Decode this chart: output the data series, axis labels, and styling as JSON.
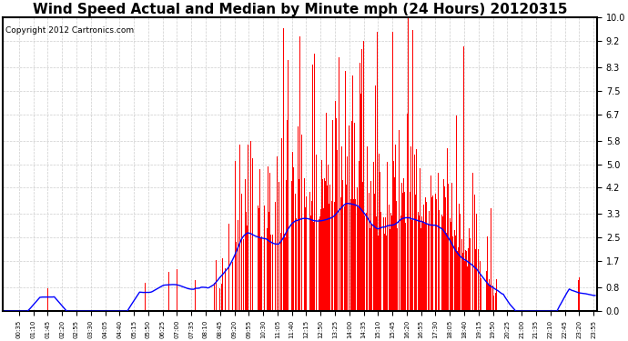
{
  "title": "Wind Speed Actual and Median by Minute mph (24 Hours) 20120315",
  "copyright": "Copyright 2012 Cartronics.com",
  "yticks": [
    0.0,
    0.8,
    1.7,
    2.5,
    3.3,
    4.2,
    5.0,
    5.8,
    6.7,
    7.5,
    8.3,
    9.2,
    10.0
  ],
  "ylim": [
    0.0,
    10.0
  ],
  "bar_color": "#FF0000",
  "line_color": "#0000FF",
  "bg_color": "#FFFFFF",
  "grid_color": "#C8C8C8",
  "title_fontsize": 11,
  "copyright_fontsize": 6.5,
  "tick_interval": 35
}
